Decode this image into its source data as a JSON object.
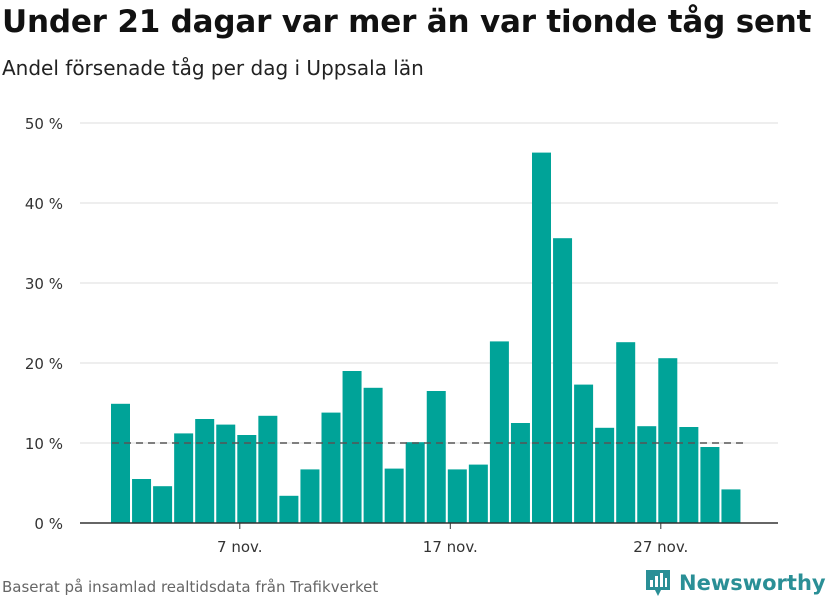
{
  "title": "Under 21 dagar var mer än var tionde tåg sent",
  "subtitle": "Andel försenade tåg per dag i Uppsala län",
  "source": "Baserat på insamlad realtidsdata från Trafikverket",
  "brand": {
    "name": "Newsworthy",
    "icon": "bar-chart-logo-icon",
    "color": "#2a8f96"
  },
  "colors": {
    "bar": "#00a398",
    "grid": "#dddddd",
    "axis": "#333333",
    "reference_line": "#555555"
  },
  "chart_data": {
    "type": "bar",
    "x_unit": "day of month (november)",
    "x": [
      1,
      2,
      3,
      4,
      5,
      6,
      7,
      8,
      9,
      10,
      11,
      12,
      13,
      14,
      15,
      16,
      17,
      18,
      19,
      20,
      21,
      22,
      23,
      24,
      25,
      26,
      27,
      28,
      29,
      30
    ],
    "values": [
      14.9,
      5.5,
      4.6,
      11.2,
      13.0,
      12.3,
      11.0,
      13.4,
      3.4,
      6.7,
      13.8,
      19.0,
      16.9,
      6.8,
      10.1,
      16.5,
      6.7,
      7.3,
      22.7,
      12.5,
      46.3,
      35.6,
      17.3,
      11.9,
      22.6,
      12.1,
      20.6,
      12.0,
      9.5,
      4.2
    ],
    "reference_line": {
      "value": 10,
      "style": "dashed"
    },
    "xticks": [
      {
        "x": 7,
        "label": "7 nov."
      },
      {
        "x": 17,
        "label": "17 nov."
      },
      {
        "x": 27,
        "label": "27 nov."
      }
    ],
    "yticks": [
      {
        "y": 0,
        "label": "0 %"
      },
      {
        "y": 10,
        "label": "10 %"
      },
      {
        "y": 20,
        "label": "20 %"
      },
      {
        "y": 30,
        "label": "30 %"
      },
      {
        "y": 40,
        "label": "40 %"
      },
      {
        "y": 50,
        "label": "50 %"
      }
    ],
    "ylim": [
      0,
      50
    ],
    "grid": true,
    "legend": "none"
  }
}
